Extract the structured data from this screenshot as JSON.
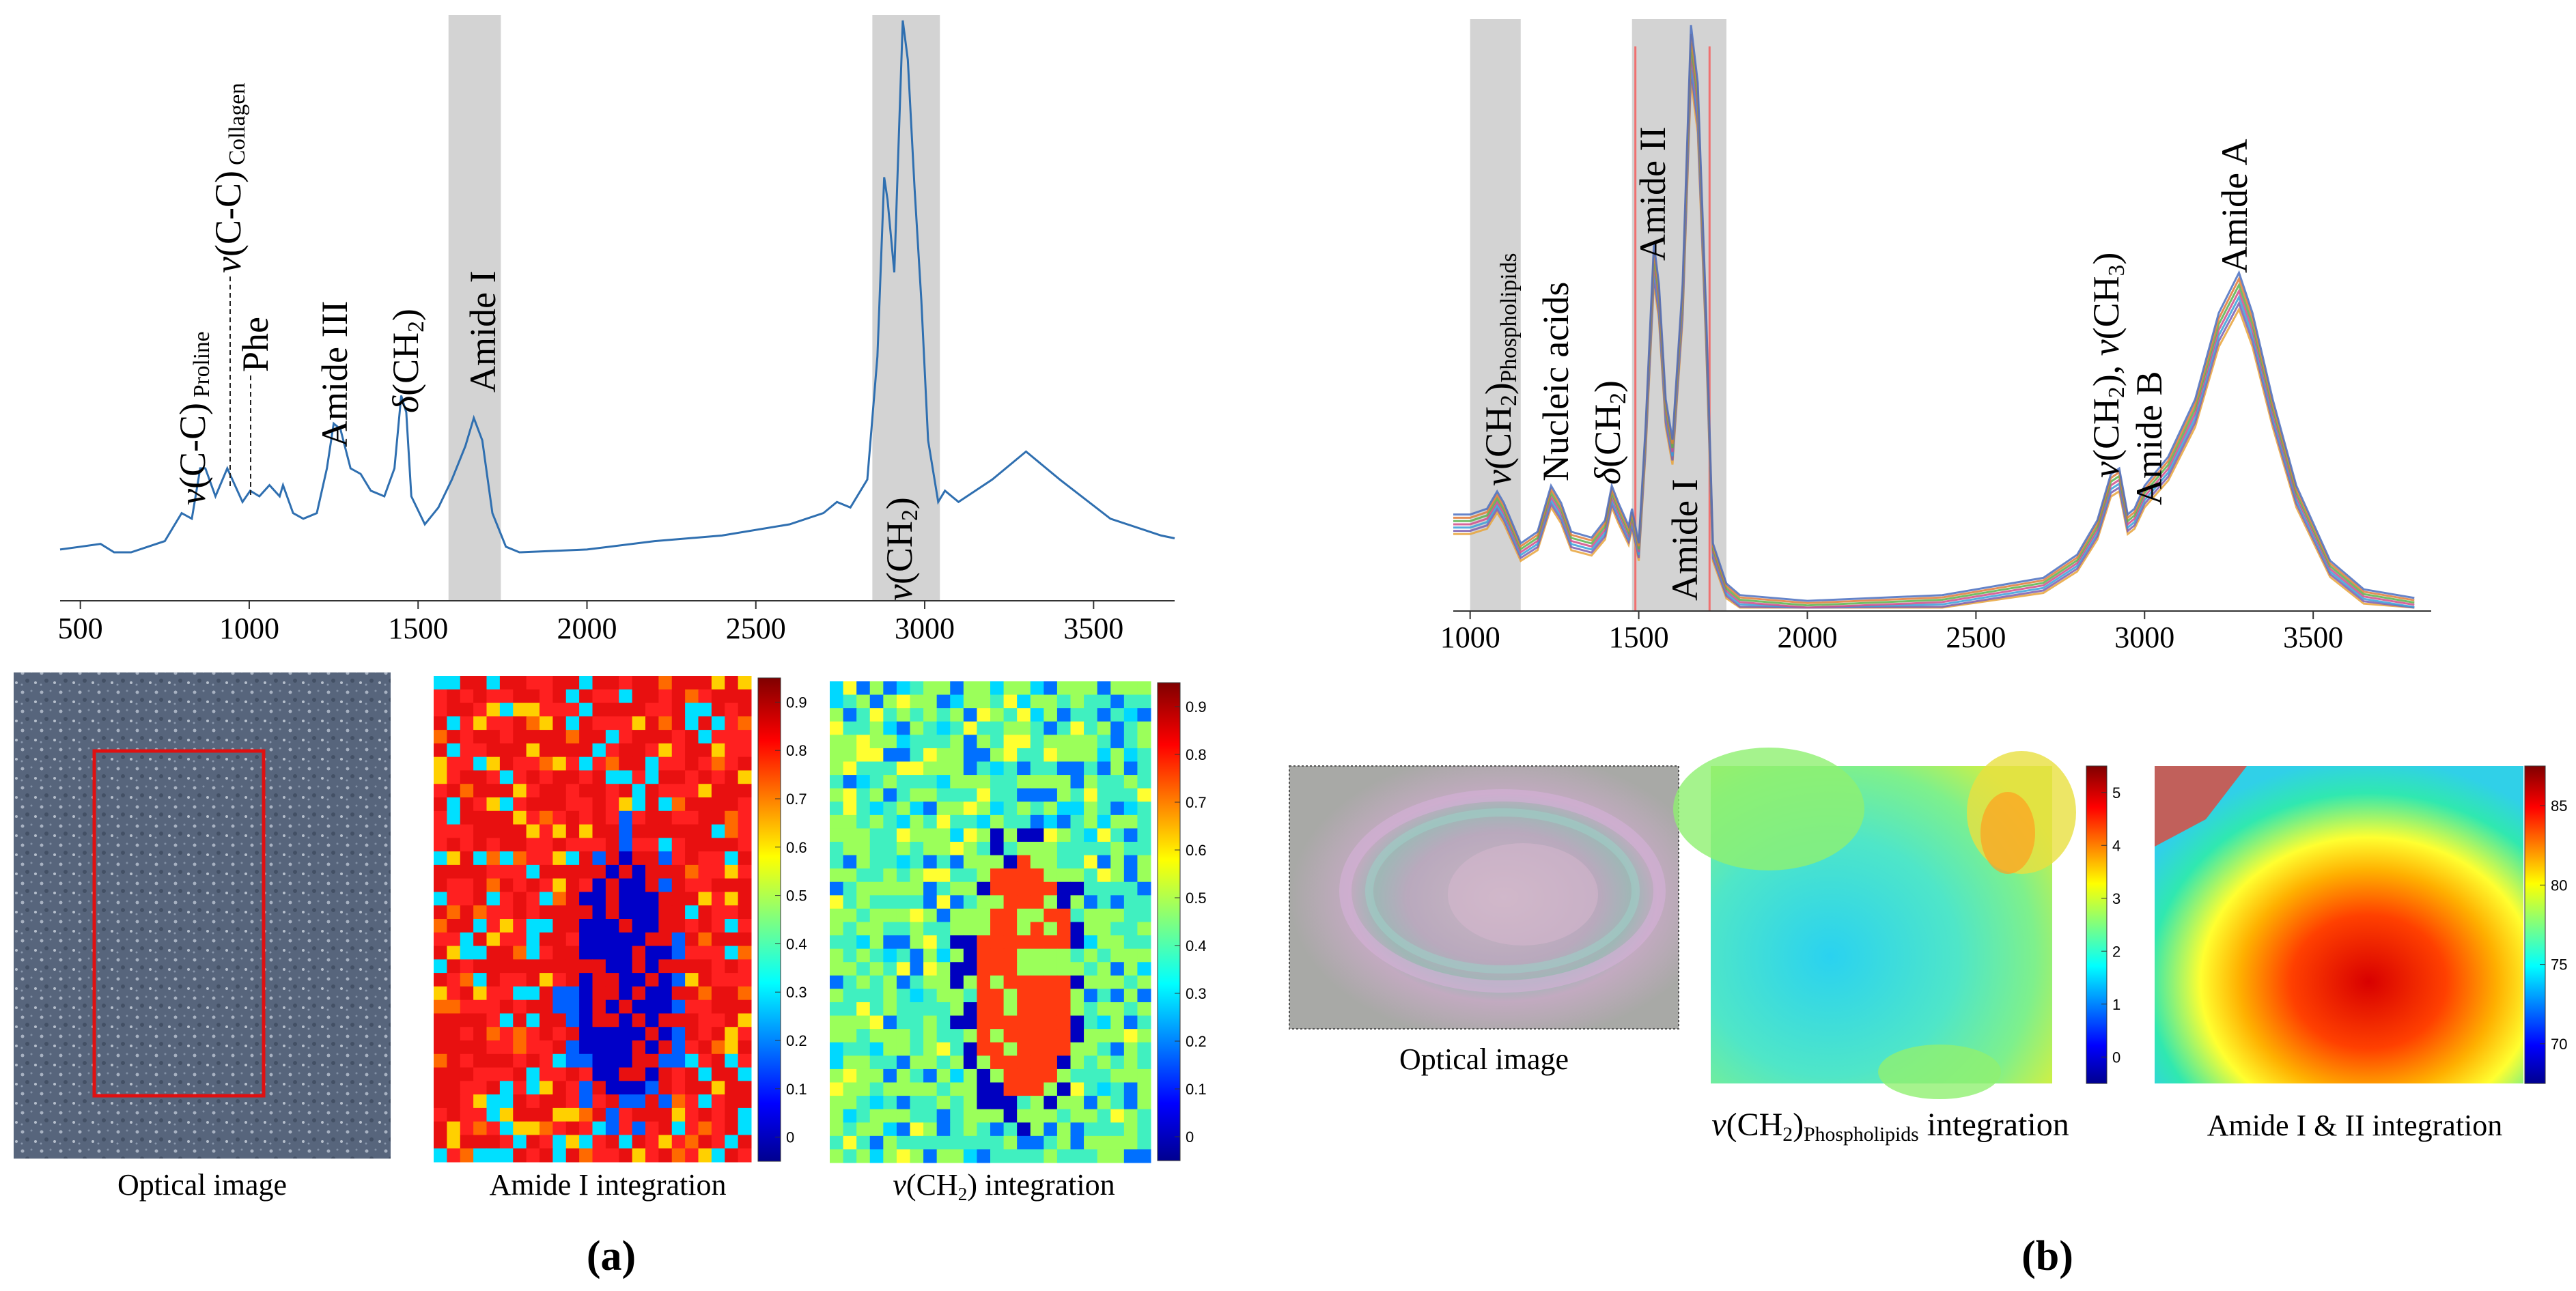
{
  "panels": {
    "a": {
      "label": "(a)",
      "spectrum": {
        "type": "line",
        "xlim": [
          440,
          3740
        ],
        "x_ticks": [
          500,
          1000,
          1500,
          2000,
          2500,
          3000,
          3500
        ],
        "x_tick_labels": [
          "500",
          "1000",
          "1500",
          "2000",
          "2500",
          "3000",
          "3500"
        ],
        "line_color": "#2f6fb0",
        "shaded_bands": [
          [
            1590,
            1745
          ],
          [
            2845,
            3045
          ]
        ],
        "peak_labels": [
          {
            "nu": "ν",
            "base": "(C-C)",
            "sub": "Proline",
            "x": 860
          },
          {
            "nu": "ν",
            "base": "(C-C)",
            "sub": "Collagen",
            "x": 935
          },
          {
            "nu": "",
            "base": "Phe",
            "sub": "",
            "x": 1003
          },
          {
            "nu": "",
            "base": "Amide III",
            "sub": "",
            "x": 1255
          },
          {
            "nu": "δ",
            "base": "(CH",
            "sub": "2",
            "tail": ")",
            "x": 1450
          },
          {
            "nu": "",
            "base": "Amide I",
            "sub": "",
            "x": 1665
          },
          {
            "nu": "ν",
            "base": "(CH",
            "sub": "2",
            "tail": ")",
            "x": 2935
          }
        ],
        "points": [
          [
            440,
            0.055
          ],
          [
            500,
            0.06
          ],
          [
            560,
            0.065
          ],
          [
            600,
            0.05
          ],
          [
            650,
            0.05
          ],
          [
            700,
            0.06
          ],
          [
            750,
            0.07
          ],
          [
            780,
            0.1
          ],
          [
            800,
            0.12
          ],
          [
            830,
            0.11
          ],
          [
            855,
            0.2
          ],
          [
            870,
            0.2
          ],
          [
            900,
            0.15
          ],
          [
            935,
            0.2
          ],
          [
            950,
            0.18
          ],
          [
            980,
            0.14
          ],
          [
            1003,
            0.16
          ],
          [
            1030,
            0.15
          ],
          [
            1060,
            0.17
          ],
          [
            1090,
            0.15
          ],
          [
            1100,
            0.17
          ],
          [
            1130,
            0.12
          ],
          [
            1160,
            0.11
          ],
          [
            1200,
            0.12
          ],
          [
            1230,
            0.2
          ],
          [
            1250,
            0.28
          ],
          [
            1270,
            0.27
          ],
          [
            1300,
            0.2
          ],
          [
            1330,
            0.19
          ],
          [
            1360,
            0.16
          ],
          [
            1400,
            0.15
          ],
          [
            1430,
            0.2
          ],
          [
            1450,
            0.33
          ],
          [
            1465,
            0.3
          ],
          [
            1480,
            0.15
          ],
          [
            1520,
            0.1
          ],
          [
            1560,
            0.13
          ],
          [
            1600,
            0.18
          ],
          [
            1640,
            0.24
          ],
          [
            1665,
            0.29
          ],
          [
            1690,
            0.25
          ],
          [
            1720,
            0.12
          ],
          [
            1760,
            0.06
          ],
          [
            1800,
            0.05
          ],
          [
            2000,
            0.055
          ],
          [
            2200,
            0.07
          ],
          [
            2400,
            0.08
          ],
          [
            2600,
            0.1
          ],
          [
            2700,
            0.12
          ],
          [
            2740,
            0.14
          ],
          [
            2780,
            0.13
          ],
          [
            2830,
            0.18
          ],
          [
            2860,
            0.4
          ],
          [
            2880,
            0.72
          ],
          [
            2890,
            0.68
          ],
          [
            2910,
            0.55
          ],
          [
            2925,
            0.82
          ],
          [
            2935,
            1.0
          ],
          [
            2950,
            0.93
          ],
          [
            2970,
            0.7
          ],
          [
            2990,
            0.5
          ],
          [
            3010,
            0.25
          ],
          [
            3040,
            0.14
          ],
          [
            3060,
            0.16
          ],
          [
            3100,
            0.14
          ],
          [
            3200,
            0.18
          ],
          [
            3300,
            0.23
          ],
          [
            3400,
            0.18
          ],
          [
            3550,
            0.11
          ],
          [
            3700,
            0.08
          ],
          [
            3740,
            0.075
          ]
        ]
      },
      "images": [
        {
          "caption": "Optical image"
        },
        {
          "caption": "Amide I integration",
          "colorbar_ticks": [
            "0.9",
            "0.8",
            "0.7",
            "0.6",
            "0.5",
            "0.4",
            "0.3",
            "0.2",
            "0.1",
            "0"
          ]
        },
        {
          "caption_nu": "ν",
          "caption_base": "(CH",
          "caption_sub": "2",
          "caption_tail": ") integration",
          "colorbar_ticks": [
            "0.9",
            "0.8",
            "0.7",
            "0.6",
            "0.5",
            "0.4",
            "0.3",
            "0.2",
            "0.1",
            "0"
          ]
        }
      ]
    },
    "b": {
      "label": "(b)",
      "spectrum": {
        "type": "line",
        "xlim": [
          950,
          3850
        ],
        "x_ticks": [
          1000,
          1500,
          2000,
          2500,
          3000,
          3500
        ],
        "x_tick_labels": [
          "1000",
          "1500",
          "2000",
          "2500",
          "3000",
          "3500"
        ],
        "shaded_bands": [
          [
            1000,
            1150
          ],
          [
            1480,
            1760
          ]
        ],
        "red_lines": [
          1490,
          1710
        ],
        "series_colors": [
          "#e8a33a",
          "#7a5db0",
          "#3aa0d8",
          "#d04c8a",
          "#58b34c",
          "#e07b39",
          "#4a6fc0"
        ],
        "peak_labels": [
          {
            "nu": "ν",
            "base": "(CH",
            "sub": "2",
            "tail": ")",
            "sub2": "Phospholipids",
            "x": 1080
          },
          {
            "nu": "",
            "base": "Nucleic acids",
            "sub": "",
            "x": 1240
          },
          {
            "nu": "δ",
            "base": "(CH",
            "sub": "2",
            "tail": ")",
            "x": 1430
          },
          {
            "nu": "",
            "base": "Amide II",
            "sub": "",
            "x": 1545
          },
          {
            "nu": "",
            "base": "Amide I",
            "sub": "",
            "x": 1650
          },
          {
            "nu": "ν",
            "base": "(CH",
            "sub": "2",
            "tail": "), ",
            "nu2": "ν",
            "base2": "(CH",
            "sub3": "3",
            "tail2": ")",
            "x": 2920
          },
          {
            "nu": "",
            "base": "Amide B",
            "sub": "",
            "x": 3075
          },
          {
            "nu": "",
            "base": "Amide A",
            "sub": "",
            "x": 3280
          }
        ],
        "points": [
          [
            950,
            0.15
          ],
          [
            1000,
            0.15
          ],
          [
            1050,
            0.16
          ],
          [
            1080,
            0.19
          ],
          [
            1100,
            0.17
          ],
          [
            1150,
            0.1
          ],
          [
            1200,
            0.12
          ],
          [
            1240,
            0.2
          ],
          [
            1270,
            0.17
          ],
          [
            1300,
            0.12
          ],
          [
            1360,
            0.11
          ],
          [
            1400,
            0.14
          ],
          [
            1420,
            0.2
          ],
          [
            1440,
            0.17
          ],
          [
            1470,
            0.13
          ],
          [
            1480,
            0.16
          ],
          [
            1500,
            0.1
          ],
          [
            1520,
            0.3
          ],
          [
            1545,
            0.62
          ],
          [
            1560,
            0.55
          ],
          [
            1580,
            0.35
          ],
          [
            1600,
            0.28
          ],
          [
            1630,
            0.55
          ],
          [
            1655,
            1.0
          ],
          [
            1675,
            0.9
          ],
          [
            1700,
            0.5
          ],
          [
            1720,
            0.1
          ],
          [
            1760,
            0.03
          ],
          [
            1800,
            0.01
          ],
          [
            2000,
            0.0
          ],
          [
            2400,
            0.01
          ],
          [
            2700,
            0.04
          ],
          [
            2800,
            0.08
          ],
          [
            2860,
            0.14
          ],
          [
            2900,
            0.22
          ],
          [
            2925,
            0.23
          ],
          [
            2950,
            0.15
          ],
          [
            2970,
            0.16
          ],
          [
            3000,
            0.2
          ],
          [
            3070,
            0.25
          ],
          [
            3150,
            0.35
          ],
          [
            3220,
            0.5
          ],
          [
            3280,
            0.57
          ],
          [
            3320,
            0.5
          ],
          [
            3380,
            0.35
          ],
          [
            3450,
            0.2
          ],
          [
            3550,
            0.07
          ],
          [
            3650,
            0.02
          ],
          [
            3800,
            0.005
          ]
        ]
      },
      "images": [
        {
          "caption": "Optical image"
        },
        {
          "caption_nu": "ν",
          "caption_base": "(CH",
          "caption_sub": "2",
          "caption_tail": ")",
          "caption_sub2": "Phospholipids",
          "caption_tail2": " integration",
          "colorbar_ticks": [
            "5",
            "4",
            "3",
            "2",
            "1",
            "0"
          ]
        },
        {
          "caption": "Amide I & II integration",
          "colorbar_ticks": [
            "85",
            "80",
            "75",
            "70"
          ]
        }
      ]
    }
  }
}
